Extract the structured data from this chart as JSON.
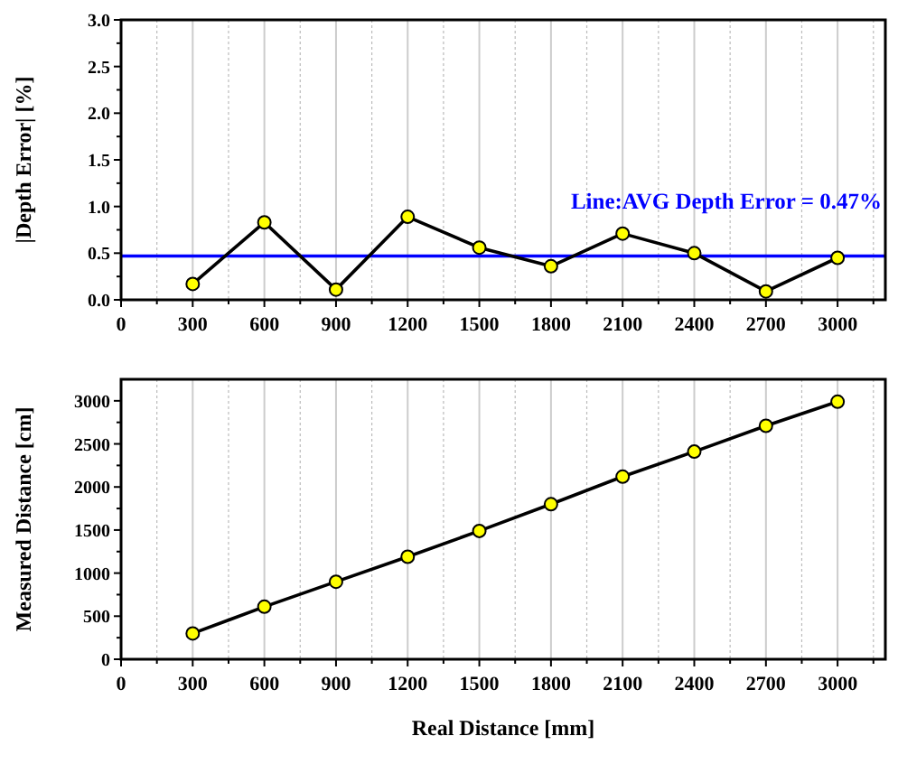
{
  "chart_data": [
    {
      "type": "line",
      "ylabel": "|Depth Error| [%]",
      "x": [
        300,
        600,
        900,
        1200,
        1500,
        1800,
        2100,
        2400,
        2700,
        3000
      ],
      "series": [
        {
          "color": "#000000",
          "values": [
            0.17,
            0.83,
            0.11,
            0.89,
            0.56,
            0.36,
            0.71,
            0.5,
            0.09,
            0.45
          ]
        }
      ],
      "marker": "circle",
      "line_style": "solid",
      "grid": "x",
      "xlim": [
        0,
        3200
      ],
      "xticks": [
        0,
        {
          "value": 150,
          "label": null
        },
        300,
        {
          "value": 450,
          "label": null
        },
        600,
        {
          "value": 750,
          "label": null
        },
        900,
        {
          "value": 1050,
          "label": null
        },
        1200,
        {
          "value": 1350,
          "label": null
        },
        1500,
        {
          "value": 1650,
          "label": null
        },
        1800,
        {
          "value": 1950,
          "label": null
        },
        2100,
        {
          "value": 2250,
          "label": null
        },
        2400,
        {
          "value": 2550,
          "label": null
        },
        2700,
        {
          "value": 2850,
          "label": null
        },
        3000,
        {
          "value": 3150,
          "label": null
        }
      ],
      "ylim": [
        0,
        3
      ],
      "yticks": [
        {
          "value": 0,
          "label": "0.0"
        },
        {
          "value": 0.25,
          "label": null
        },
        0.5,
        {
          "value": 0.75,
          "label": null
        },
        {
          "value": 1,
          "label": "1.0"
        },
        {
          "value": 1.25,
          "label": null
        },
        1.5,
        {
          "value": 1.75,
          "label": null
        },
        {
          "value": 2,
          "label": "2.0"
        },
        {
          "value": 2.25,
          "label": null
        },
        2.5,
        {
          "value": 2.75,
          "label": null
        },
        {
          "value": 3,
          "label": "3.0"
        }
      ],
      "ref_lines": [
        {
          "axis": "y",
          "value": 0.47,
          "label": "Line:AVG Depth Error = 0.47%",
          "color": "#0000ff",
          "line_style": "solid"
        }
      ]
    },
    {
      "type": "line",
      "xlabel": "Real Distance [mm]",
      "ylabel": "Measured Distance [cm]",
      "x": [
        300,
        600,
        900,
        1200,
        1500,
        1800,
        2100,
        2400,
        2700,
        3000
      ],
      "series": [
        {
          "color": "#000000",
          "values": [
            300,
            610,
            900,
            1190,
            1490,
            1800,
            2120,
            2410,
            2710,
            2990
          ]
        }
      ],
      "marker": "circle",
      "line_style": "solid",
      "grid": "x",
      "xlim": [
        0,
        3200
      ],
      "xticks": [
        0,
        {
          "value": 150,
          "label": null
        },
        300,
        {
          "value": 450,
          "label": null
        },
        600,
        {
          "value": 750,
          "label": null
        },
        900,
        {
          "value": 1050,
          "label": null
        },
        1200,
        {
          "value": 1350,
          "label": null
        },
        1500,
        {
          "value": 1650,
          "label": null
        },
        1800,
        {
          "value": 1950,
          "label": null
        },
        2100,
        {
          "value": 2250,
          "label": null
        },
        2400,
        {
          "value": 2550,
          "label": null
        },
        2700,
        {
          "value": 2850,
          "label": null
        },
        3000,
        {
          "value": 3150,
          "label": null
        }
      ],
      "ylim": [
        0,
        3250
      ],
      "yticks": [
        0,
        {
          "value": 250,
          "label": null
        },
        500,
        {
          "value": 750,
          "label": null
        },
        1000,
        {
          "value": 1250,
          "label": null
        },
        1500,
        {
          "value": 1750,
          "label": null
        },
        2000,
        {
          "value": 2250,
          "label": null
        },
        2500,
        {
          "value": 2750,
          "label": null
        },
        3000
      ]
    }
  ]
}
